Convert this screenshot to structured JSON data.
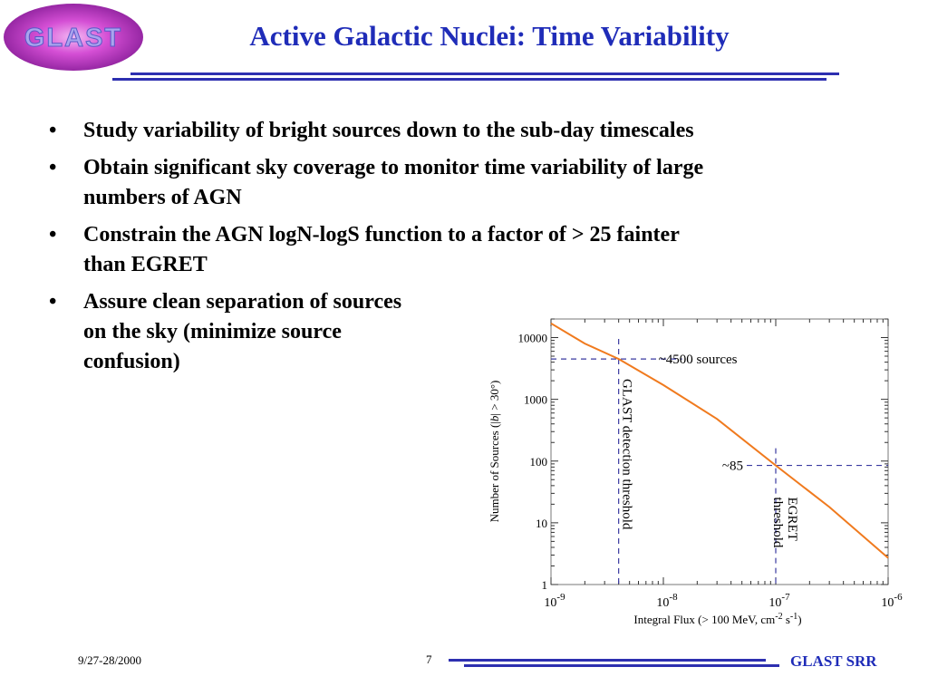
{
  "header": {
    "logo_text": "GLAST",
    "title": "Active Galactic Nuclei: Time Variability"
  },
  "bullets": [
    {
      "line1": "Study variability of bright sources down to the sub-day timescales",
      "line2": ""
    },
    {
      "line1": "Obtain significant sky coverage to monitor time variability of large",
      "line2": "numbers of AGN"
    },
    {
      "line1": "Constrain the AGN logN-logS function to a factor of > 25 fainter",
      "line2": "than EGRET"
    },
    {
      "line1": "Assure clean separation of sources",
      "line2": "on the sky (minimize source",
      "line3": "confusion)"
    }
  ],
  "bullet_glyph": "•",
  "chart_data": {
    "type": "line",
    "xscale": "log",
    "yscale": "log",
    "xlim": [
      1e-09,
      1e-06
    ],
    "ylim": [
      1,
      20000
    ],
    "x_ticks": [
      {
        "base": "10",
        "exp": "-9"
      },
      {
        "base": "10",
        "exp": "-8"
      },
      {
        "base": "10",
        "exp": "-7"
      },
      {
        "base": "10",
        "exp": "-6"
      }
    ],
    "y_ticks": [
      "1",
      "10",
      "100",
      "1000",
      "10000"
    ],
    "xlabel_main": "Integral Flux (> 100 MeV, cm",
    "xlabel_exp1": "-2",
    "xlabel_mid": " s",
    "xlabel_exp2": "-1",
    "xlabel_end": ")",
    "ylabel_pre": "Number of Sources (|",
    "ylabel_b": "b",
    "ylabel_post": "| > 30°)",
    "series": [
      {
        "color": "#f07a1e",
        "x": [
          1e-09,
          2e-09,
          4e-09,
          1e-08,
          3e-08,
          1e-07,
          3e-07,
          1e-06
        ],
        "y": [
          17000,
          8000,
          4500,
          1700,
          480,
          85,
          18,
          2.7
        ]
      }
    ],
    "annotations": {
      "glast_threshold_x": 4e-09,
      "glast_count_y": 4500,
      "glast_count_label": "~4500 sources",
      "glast_threshold_label": "GLAST detection threshold",
      "egret_threshold_x": 1e-07,
      "egret_count_y": 85,
      "egret_count_label": "~85",
      "egret_label_line1": "EGRET",
      "egret_label_line2": "threshold"
    },
    "line_color": "#f07a1e",
    "guide_color": "#3a3aa0"
  },
  "footer": {
    "date": "9/27-28/2000",
    "page": "7",
    "brand": "GLAST SRR"
  },
  "colors": {
    "title": "#1f2cb8",
    "rule": "#2d2fb0",
    "logo_fill": "#d54fd5"
  }
}
